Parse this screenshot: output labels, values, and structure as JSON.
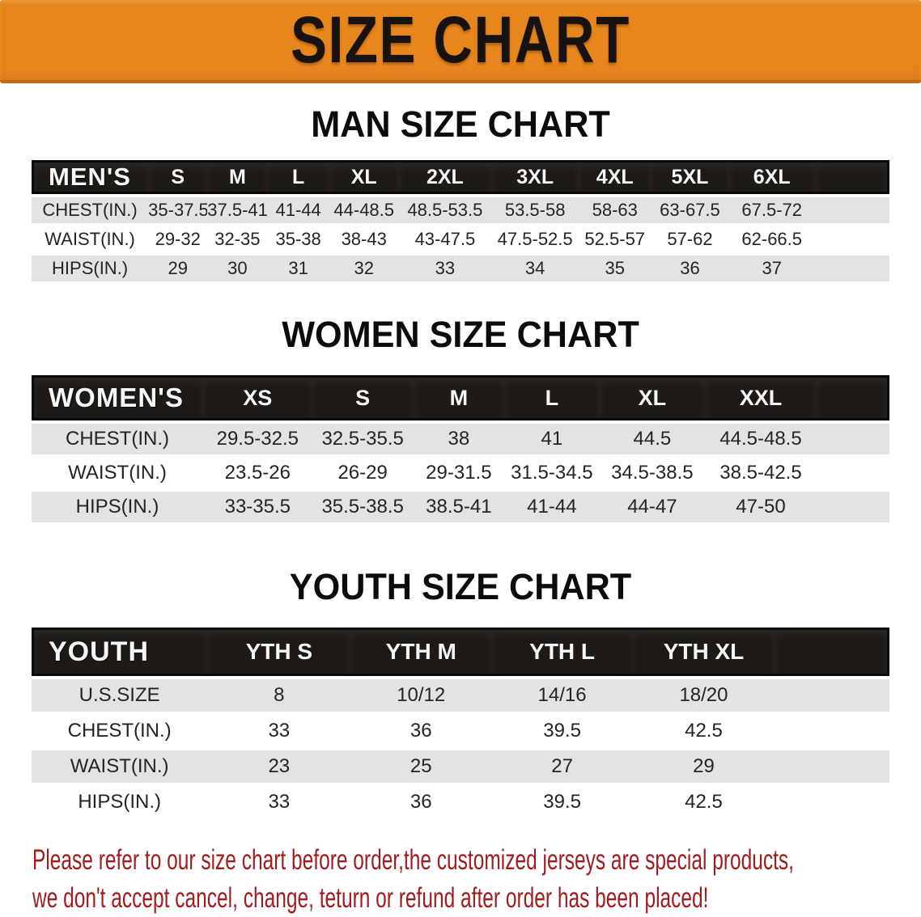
{
  "banner": {
    "title": "SIZE CHART",
    "bg_color": "#E8861E",
    "text_color": "#171310"
  },
  "sections": [
    {
      "id": "men",
      "heading": "MAN SIZE CHART",
      "table": {
        "label": "MEN'S",
        "columns": [
          "S",
          "M",
          "L",
          "XL",
          "2XL",
          "3XL",
          "4XL",
          "5XL",
          "6XL"
        ],
        "rows": [
          {
            "label": "CHEST(IN.)",
            "values": [
              "35-37.5",
              "37.5-41",
              "41-44",
              "44-48.5",
              "48.5-53.5",
              "53.5-58",
              "58-63",
              "63-67.5",
              "67.5-72"
            ]
          },
          {
            "label": "WAIST(IN.)",
            "values": [
              "29-32",
              "32-35",
              "35-38",
              "38-43",
              "43-47.5",
              "47.5-52.5",
              "52.5-57",
              "57-62",
              "62-66.5"
            ]
          },
          {
            "label": "HIPS(IN.)",
            "values": [
              "29",
              "30",
              "31",
              "32",
              "33",
              "34",
              "35",
              "36",
              "37"
            ]
          }
        ]
      }
    },
    {
      "id": "women",
      "heading": "WOMEN SIZE CHART",
      "table": {
        "label": "WOMEN'S",
        "columns": [
          "XS",
          "S",
          "M",
          "L",
          "XL",
          "XXL"
        ],
        "rows": [
          {
            "label": "CHEST(IN.)",
            "values": [
              "29.5-32.5",
              "32.5-35.5",
              "38",
              "41",
              "44.5",
              "44.5-48.5"
            ]
          },
          {
            "label": "WAIST(IN.)",
            "values": [
              "23.5-26",
              "26-29",
              "29-31.5",
              "31.5-34.5",
              "34.5-38.5",
              "38.5-42.5"
            ]
          },
          {
            "label": "HIPS(IN.)",
            "values": [
              "33-35.5",
              "35.5-38.5",
              "38.5-41",
              "41-44",
              "44-47",
              "47-50"
            ]
          }
        ]
      }
    },
    {
      "id": "youth",
      "heading": "YOUTH SIZE CHART",
      "table": {
        "label": "YOUTH",
        "columns": [
          "YTH S",
          "YTH M",
          "YTH L",
          "YTH XL"
        ],
        "rows": [
          {
            "label": "U.S.SIZE",
            "values": [
              "8",
              "10/12",
              "14/16",
              "18/20"
            ]
          },
          {
            "label": "CHEST(IN.)",
            "values": [
              "33",
              "36",
              "39.5",
              "42.5"
            ]
          },
          {
            "label": "WAIST(IN.)",
            "values": [
              "23",
              "25",
              "27",
              "29"
            ]
          },
          {
            "label": "HIPS(IN.)",
            "values": [
              "33",
              "36",
              "39.5",
              "42.5"
            ]
          }
        ]
      }
    }
  ],
  "note": {
    "line1": "Please refer to our size chart before order,the customized jerseys are special products,",
    "line2": "we don't accept cancel, change, teturn or refund after order has been placed!",
    "color": "#A01D1F"
  }
}
